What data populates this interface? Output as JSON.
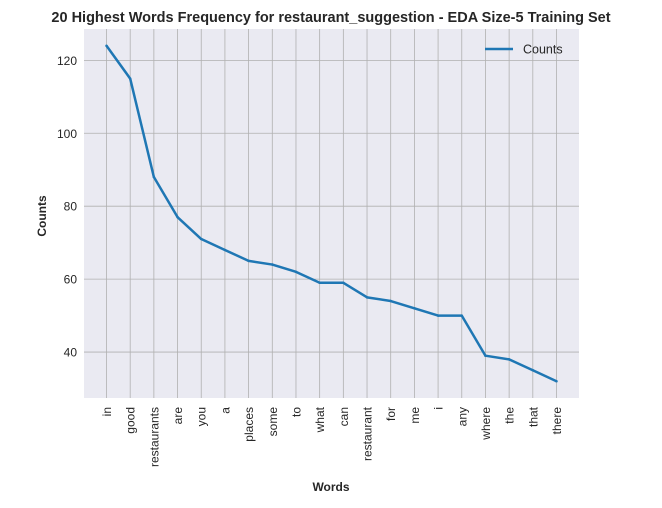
{
  "chart_data": {
    "type": "line",
    "title": "20 Highest Words Frequency for restaurant_suggestion - EDA Size-5 Training Set",
    "xlabel": "Words",
    "ylabel": "Counts",
    "categories": [
      "in",
      "good",
      "restaurants",
      "are",
      "you",
      "a",
      "places",
      "some",
      "to",
      "what",
      "can",
      "restaurant",
      "for",
      "me",
      "i",
      "any",
      "where",
      "the",
      "that",
      "there"
    ],
    "series": [
      {
        "name": "Counts",
        "values": [
          124,
          115,
          88,
          77,
          71,
          68,
          65,
          64,
          62,
          59,
          59,
          55,
          54,
          52,
          50,
          50,
          39,
          38,
          35,
          32
        ]
      }
    ],
    "yticks": [
      40,
      60,
      80,
      100,
      120
    ],
    "ylim": [
      27.4,
      128.6
    ],
    "grid": true,
    "legend_position": "top-right",
    "colors": {
      "line": "#1f77b4",
      "plot_background": "#eaeaf2",
      "grid": "#b0b0b0",
      "text": "#262626"
    }
  }
}
